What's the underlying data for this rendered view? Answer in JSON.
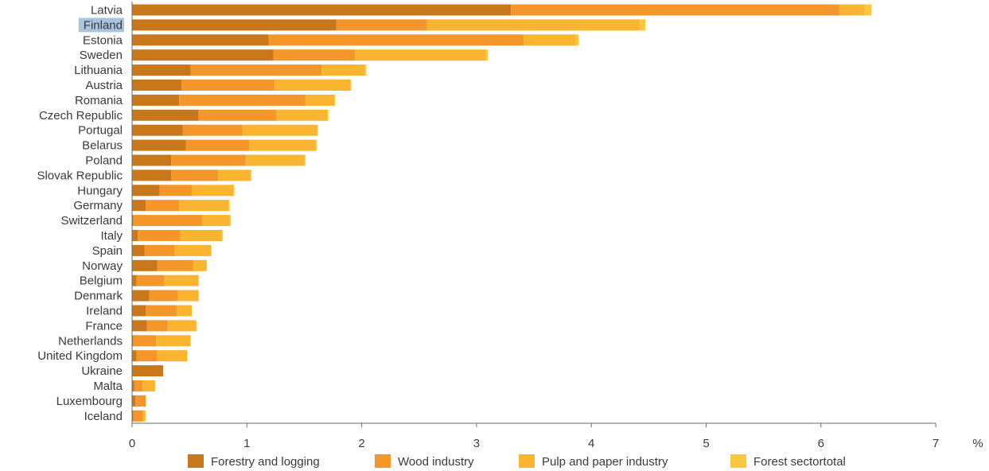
{
  "chart_data": {
    "type": "bar",
    "orientation": "horizontal",
    "stacked": true,
    "categories": [
      "Latvia",
      "Finland",
      "Estonia",
      "Sweden",
      "Lithuania",
      "Austria",
      "Romania",
      "Czech Republic",
      "Portugal",
      "Belarus",
      "Poland",
      "Slovak Republic",
      "Hungary",
      "Germany",
      "Switzerland",
      "Italy",
      "Spain",
      "Norway",
      "Belgium",
      "Denmark",
      "Ireland",
      "France",
      "Netherlands",
      "United Kingdom",
      "Ukraine",
      "Malta",
      "Luxembourg",
      "Iceland"
    ],
    "highlighted_category": "Finland",
    "highlight_color": "#a9c4dc",
    "series": [
      {
        "name": "Forestry and logging",
        "color": "#c8771a",
        "values": [
          3.3,
          1.78,
          1.19,
          1.23,
          0.51,
          0.43,
          0.41,
          0.58,
          0.44,
          0.47,
          0.34,
          0.34,
          0.24,
          0.12,
          0.01,
          0.05,
          0.11,
          0.22,
          0.04,
          0.15,
          0.12,
          0.13,
          0.01,
          0.04,
          0.27,
          0.02,
          0.03,
          0.01
        ]
      },
      {
        "name": "Wood industry",
        "color": "#f4962a",
        "values": [
          2.86,
          0.79,
          2.22,
          0.71,
          1.14,
          0.81,
          1.1,
          0.68,
          0.52,
          0.55,
          0.65,
          0.41,
          0.28,
          0.29,
          0.6,
          0.37,
          0.26,
          0.31,
          0.24,
          0.25,
          0.27,
          0.18,
          0.2,
          0.18,
          0.0,
          0.07,
          0.09,
          0.08
        ]
      },
      {
        "name": "Pulp and paper industry",
        "color": "#f9b430",
        "values": [
          0.22,
          1.85,
          0.45,
          1.14,
          0.37,
          0.66,
          0.25,
          0.44,
          0.65,
          0.58,
          0.51,
          0.28,
          0.36,
          0.43,
          0.24,
          0.36,
          0.32,
          0.12,
          0.3,
          0.18,
          0.13,
          0.25,
          0.3,
          0.26,
          0.0,
          0.11,
          0.0,
          0.02
        ]
      },
      {
        "name": "Forest sectortotal",
        "color": "#fcc740",
        "values": [
          0.06,
          0.05,
          0.03,
          0.02,
          0.02,
          0.01,
          0.01,
          0.01,
          0.01,
          0.01,
          0.01,
          0.01,
          0.01,
          0.01,
          0.01,
          0.01,
          0.0,
          0.0,
          0.0,
          0.0,
          0.0,
          0.0,
          0.0,
          0.0,
          0.0,
          0.0,
          0.0,
          0.01
        ]
      }
    ],
    "x_ticks": [
      "0",
      "1",
      "2",
      "3",
      "4",
      "5",
      "6",
      "7"
    ],
    "xlim": [
      0,
      7
    ],
    "unit": "%",
    "xlabel": "",
    "ylabel": "",
    "title": "",
    "grid": false,
    "legend_position": "bottom"
  }
}
